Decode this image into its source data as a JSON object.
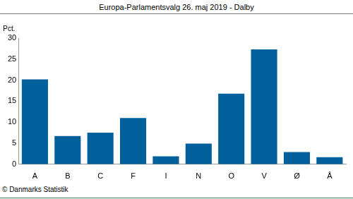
{
  "chart_data": {
    "type": "bar",
    "title": "Europa-Parlamentsvalg 26. maj 2019 - Dalby",
    "ylabel": "Pct.",
    "categories": [
      "A",
      "B",
      "C",
      "F",
      "I",
      "N",
      "O",
      "V",
      "Ø",
      "Å"
    ],
    "values": [
      20.2,
      6.7,
      7.5,
      11.0,
      1.9,
      4.9,
      16.8,
      27.3,
      2.9,
      1.7
    ],
    "color": "#00609c",
    "ylim": [
      0,
      30
    ],
    "yticks": [
      0,
      5,
      10,
      15,
      20,
      25,
      30
    ],
    "grid": false,
    "annotations": [
      "© Danmarks Statistik"
    ]
  }
}
